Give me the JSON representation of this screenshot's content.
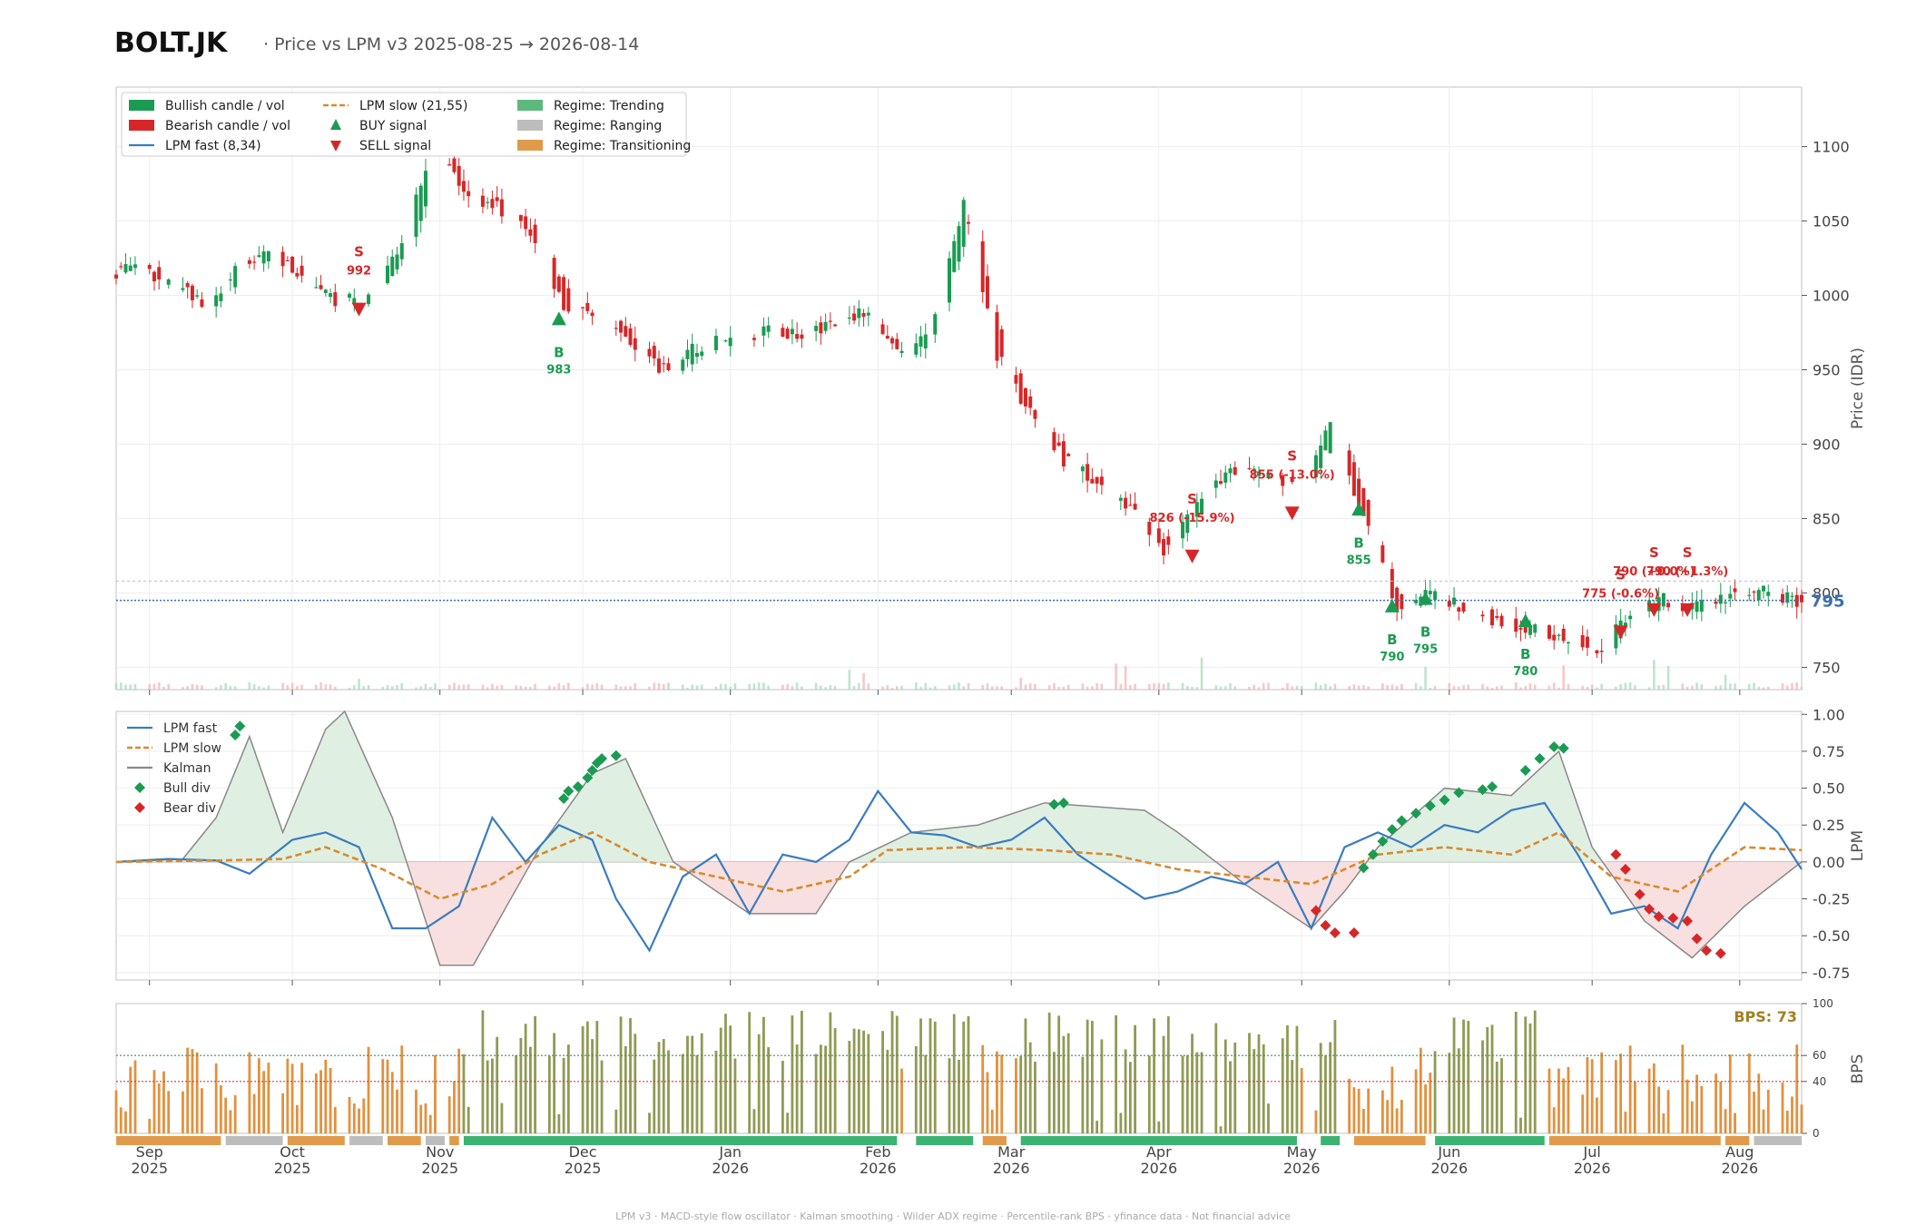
{
  "header": {
    "ticker": "BOLT.JK",
    "subtitle": "·  Price vs LPM v3  2025-08-25 → 2026-08-14"
  },
  "footer": "LPM v3  ·  MACD-style flow oscillator  ·  Kalman smoothing  ·  Wilder ADX regime  ·  Percentile-rank BPS  ·  yfinance data  ·  Not financial advice",
  "colors": {
    "bull": "#1b9b52",
    "bear": "#d62728",
    "fast": "#3a7cc0",
    "slow": "#d98a2e",
    "kalman": "#888888",
    "trend": "#3cb371",
    "range": "#bdbdbd",
    "trans": "#e09a4c",
    "last": "#3a6fb0"
  },
  "legend": [
    {
      "label": "Bullish candle / vol",
      "swatch": "box",
      "color": "#1b9b52"
    },
    {
      "label": "Bearish candle / vol",
      "swatch": "box",
      "color": "#d62728"
    },
    {
      "label": "LPM fast (8,34)",
      "swatch": "line",
      "color": "#3a7cc0"
    },
    {
      "label": "LPM slow (21,55)",
      "swatch": "dash",
      "color": "#d98a2e"
    },
    {
      "label": "BUY signal",
      "swatch": "up",
      "color": "#1b9b52"
    },
    {
      "label": "SELL signal",
      "swatch": "down",
      "color": "#d62728"
    },
    {
      "label": "Regime: Trending",
      "swatch": "box",
      "color": "#5cb87d"
    },
    {
      "label": "Regime: Ranging",
      "swatch": "box",
      "color": "#bdbdbd"
    },
    {
      "label": "Regime: Transitioning",
      "swatch": "box",
      "color": "#e09a4c"
    }
  ],
  "legend2": [
    {
      "label": "LPM fast",
      "swatch": "line",
      "color": "#3a7cc0"
    },
    {
      "label": "LPM slow",
      "swatch": "dash",
      "color": "#d98a2e"
    },
    {
      "label": "Kalman",
      "swatch": "line",
      "color": "#888888"
    },
    {
      "label": "Bull div",
      "swatch": "diamond",
      "color": "#1b9b52"
    },
    {
      "label": "Bear div",
      "swatch": "diamond",
      "color": "#d62728"
    }
  ],
  "chart_data": {
    "type": "candlestick",
    "x_range": [
      "2025-08-25",
      "2026-08-14"
    ],
    "x_ticks": [
      {
        "date": "2025-09-01",
        "l1": "Sep",
        "l2": "2025"
      },
      {
        "date": "2025-10-01",
        "l1": "Oct",
        "l2": "2025"
      },
      {
        "date": "2025-11-01",
        "l1": "Nov",
        "l2": "2025"
      },
      {
        "date": "2025-12-01",
        "l1": "Dec",
        "l2": "2025"
      },
      {
        "date": "2026-01-01",
        "l1": "Jan",
        "l2": "2026"
      },
      {
        "date": "2026-02-01",
        "l1": "Feb",
        "l2": "2026"
      },
      {
        "date": "2026-03-01",
        "l1": "Mar",
        "l2": "2026"
      },
      {
        "date": "2026-04-01",
        "l1": "Apr",
        "l2": "2026"
      },
      {
        "date": "2026-05-01",
        "l1": "May",
        "l2": "2026"
      },
      {
        "date": "2026-06-01",
        "l1": "Jun",
        "l2": "2026"
      },
      {
        "date": "2026-07-01",
        "l1": "Jul",
        "l2": "2026"
      },
      {
        "date": "2026-08-01",
        "l1": "Aug",
        "l2": "2026"
      }
    ],
    "price": {
      "ylabel": "Price (IDR)",
      "ylim": [
        735,
        1140
      ],
      "yticks": [
        750,
        800,
        850,
        900,
        950,
        1000,
        1050,
        1100
      ],
      "last_price": 795,
      "ref_level": 808,
      "closes": [
        [
          "2025-08-25",
          1015
        ],
        [
          "2025-09-01",
          1018
        ],
        [
          "2025-09-08",
          1005
        ],
        [
          "2025-09-15",
          995
        ],
        [
          "2025-09-22",
          1020
        ],
        [
          "2025-09-29",
          1030
        ],
        [
          "2025-10-06",
          1005
        ],
        [
          "2025-10-13",
          995
        ],
        [
          "2025-10-20",
          1000
        ],
        [
          "2025-10-27",
          1040
        ],
        [
          "2025-11-01",
          1100
        ],
        [
          "2025-11-08",
          1070
        ],
        [
          "2025-11-15",
          1060
        ],
        [
          "2025-11-22",
          1040
        ],
        [
          "2025-11-29",
          995
        ],
        [
          "2025-12-06",
          985
        ],
        [
          "2025-12-13",
          970
        ],
        [
          "2025-12-20",
          950
        ],
        [
          "2025-12-27",
          965
        ],
        [
          "2026-01-03",
          972
        ],
        [
          "2026-01-10",
          976
        ],
        [
          "2026-01-17",
          975
        ],
        [
          "2026-01-24",
          980
        ],
        [
          "2026-01-31",
          990
        ],
        [
          "2026-02-07",
          960
        ],
        [
          "2026-02-14",
          975
        ],
        [
          "2026-02-21",
          1060
        ],
        [
          "2026-02-28",
          960
        ],
        [
          "2026-03-07",
          920
        ],
        [
          "2026-03-14",
          890
        ],
        [
          "2026-03-21",
          875
        ],
        [
          "2026-03-28",
          855
        ],
        [
          "2026-04-04",
          830
        ],
        [
          "2026-04-11",
          860
        ],
        [
          "2026-04-18",
          885
        ],
        [
          "2026-04-25",
          880
        ],
        [
          "2026-05-02",
          870
        ],
        [
          "2026-05-09",
          910
        ],
        [
          "2026-05-16",
          850
        ],
        [
          "2026-05-23",
          790
        ],
        [
          "2026-05-30",
          800
        ],
        [
          "2026-06-06",
          790
        ],
        [
          "2026-06-13",
          780
        ],
        [
          "2026-06-20",
          775
        ],
        [
          "2026-06-27",
          770
        ],
        [
          "2026-07-04",
          760
        ],
        [
          "2026-07-11",
          785
        ],
        [
          "2026-07-18",
          795
        ],
        [
          "2026-07-25",
          790
        ],
        [
          "2026-08-01",
          800
        ],
        [
          "2026-08-08",
          800
        ],
        [
          "2026-08-14",
          795
        ]
      ]
    },
    "signals": [
      {
        "date": "2025-10-15",
        "type": "SELL",
        "price": 992,
        "text1": "S",
        "text2": "992"
      },
      {
        "date": "2025-11-26",
        "type": "BUY",
        "price": 983,
        "text1": "B",
        "text2": "983"
      },
      {
        "date": "2026-04-08",
        "type": "SELL",
        "price": 826,
        "text1": "S",
        "text2": "826 (-15.9%)"
      },
      {
        "date": "2026-04-29",
        "type": "SELL",
        "price": 855,
        "text1": "S",
        "text2": "855 (-13.0%)"
      },
      {
        "date": "2026-05-13",
        "type": "BUY",
        "price": 855,
        "text1": "B",
        "text2": "855"
      },
      {
        "date": "2026-05-20",
        "type": "BUY",
        "price": 790,
        "text1": "B",
        "text2": "790"
      },
      {
        "date": "2026-05-27",
        "type": "BUY",
        "price": 795,
        "text1": "B",
        "text2": "795"
      },
      {
        "date": "2026-06-17",
        "type": "BUY",
        "price": 780,
        "text1": "B",
        "text2": "780"
      },
      {
        "date": "2026-07-07",
        "type": "SELL",
        "price": 775,
        "text1": "S",
        "text2": "775 (-0.6%)"
      },
      {
        "date": "2026-07-14",
        "type": "SELL",
        "price": 790,
        "text1": "S",
        "text2": "790 (+0.0%)"
      },
      {
        "date": "2026-07-21",
        "type": "SELL",
        "price": 790,
        "text1": "S",
        "text2": "790 (+1.3%)"
      }
    ],
    "lpm": {
      "ylabel": "LPM",
      "ylim": [
        -0.8,
        1.02
      ],
      "yticks": [
        -0.75,
        -0.5,
        -0.25,
        0.0,
        0.25,
        0.5,
        0.75,
        1.0
      ],
      "fast": [
        [
          "2025-08-25",
          0.0
        ],
        [
          "2025-09-05",
          0.02
        ],
        [
          "2025-09-15",
          0.01
        ],
        [
          "2025-09-22",
          -0.08
        ],
        [
          "2025-10-01",
          0.15
        ],
        [
          "2025-10-08",
          0.2
        ],
        [
          "2025-10-15",
          0.1
        ],
        [
          "2025-10-22",
          -0.45
        ],
        [
          "2025-10-29",
          -0.45
        ],
        [
          "2025-11-05",
          -0.3
        ],
        [
          "2025-11-12",
          0.3
        ],
        [
          "2025-11-19",
          0.0
        ],
        [
          "2025-11-26",
          0.25
        ],
        [
          "2025-12-03",
          0.15
        ],
        [
          "2025-12-08",
          -0.25
        ],
        [
          "2025-12-15",
          -0.6
        ],
        [
          "2025-12-22",
          -0.1
        ],
        [
          "2025-12-29",
          0.05
        ],
        [
          "2026-01-05",
          -0.35
        ],
        [
          "2026-01-12",
          0.05
        ],
        [
          "2026-01-19",
          0.0
        ],
        [
          "2026-01-26",
          0.15
        ],
        [
          "2026-02-01",
          0.48
        ],
        [
          "2026-02-08",
          0.2
        ],
        [
          "2026-02-15",
          0.18
        ],
        [
          "2026-02-22",
          0.1
        ],
        [
          "2026-03-01",
          0.15
        ],
        [
          "2026-03-08",
          0.3
        ],
        [
          "2026-03-15",
          0.05
        ],
        [
          "2026-03-22",
          -0.1
        ],
        [
          "2026-03-29",
          -0.25
        ],
        [
          "2026-04-05",
          -0.2
        ],
        [
          "2026-04-12",
          -0.1
        ],
        [
          "2026-04-19",
          -0.15
        ],
        [
          "2026-04-26",
          0.0
        ],
        [
          "2026-05-03",
          -0.45
        ],
        [
          "2026-05-10",
          0.1
        ],
        [
          "2026-05-17",
          0.2
        ],
        [
          "2026-05-24",
          0.1
        ],
        [
          "2026-05-31",
          0.25
        ],
        [
          "2026-06-07",
          0.2
        ],
        [
          "2026-06-14",
          0.35
        ],
        [
          "2026-06-21",
          0.4
        ],
        [
          "2026-06-28",
          0.05
        ],
        [
          "2026-07-05",
          -0.35
        ],
        [
          "2026-07-12",
          -0.3
        ],
        [
          "2026-07-19",
          -0.45
        ],
        [
          "2026-07-26",
          0.05
        ],
        [
          "2026-08-02",
          0.4
        ],
        [
          "2026-08-09",
          0.2
        ],
        [
          "2026-08-14",
          -0.05
        ]
      ],
      "slow": [
        [
          "2025-08-25",
          0.0
        ],
        [
          "2025-09-15",
          0.01
        ],
        [
          "2025-09-29",
          0.02
        ],
        [
          "2025-10-08",
          0.1
        ],
        [
          "2025-10-20",
          -0.05
        ],
        [
          "2025-11-01",
          -0.25
        ],
        [
          "2025-11-12",
          -0.15
        ],
        [
          "2025-11-22",
          0.05
        ],
        [
          "2025-12-03",
          0.2
        ],
        [
          "2025-12-15",
          0.0
        ],
        [
          "2025-12-29",
          -0.1
        ],
        [
          "2026-01-12",
          -0.2
        ],
        [
          "2026-01-26",
          -0.1
        ],
        [
          "2026-02-03",
          0.08
        ],
        [
          "2026-02-20",
          0.1
        ],
        [
          "2026-03-08",
          0.08
        ],
        [
          "2026-03-22",
          0.05
        ],
        [
          "2026-04-05",
          -0.05
        ],
        [
          "2026-04-19",
          -0.1
        ],
        [
          "2026-05-03",
          -0.15
        ],
        [
          "2026-05-17",
          0.05
        ],
        [
          "2026-05-31",
          0.1
        ],
        [
          "2026-06-14",
          0.05
        ],
        [
          "2026-06-24",
          0.2
        ],
        [
          "2026-07-05",
          -0.1
        ],
        [
          "2026-07-19",
          -0.2
        ],
        [
          "2026-08-02",
          0.1
        ],
        [
          "2026-08-14",
          0.08
        ]
      ],
      "kalman": [
        [
          "2025-08-25",
          0.0
        ],
        [
          "2025-09-08",
          0.02
        ],
        [
          "2025-09-15",
          0.3
        ],
        [
          "2025-09-22",
          0.85
        ],
        [
          "2025-09-29",
          0.2
        ],
        [
          "2025-10-08",
          0.9
        ],
        [
          "2025-10-12",
          1.02
        ],
        [
          "2025-10-22",
          0.3
        ],
        [
          "2025-11-01",
          -0.7
        ],
        [
          "2025-11-08",
          -0.7
        ],
        [
          "2025-11-15",
          -0.3
        ],
        [
          "2025-11-22",
          0.1
        ],
        [
          "2025-12-03",
          0.6
        ],
        [
          "2025-12-10",
          0.7
        ],
        [
          "2025-12-20",
          0.0
        ],
        [
          "2026-01-05",
          -0.35
        ],
        [
          "2026-01-19",
          -0.35
        ],
        [
          "2026-01-26",
          0.0
        ],
        [
          "2026-02-08",
          0.2
        ],
        [
          "2026-02-22",
          0.25
        ],
        [
          "2026-03-08",
          0.4
        ],
        [
          "2026-03-29",
          0.35
        ],
        [
          "2026-04-05",
          0.2
        ],
        [
          "2026-04-19",
          -0.15
        ],
        [
          "2026-05-03",
          -0.45
        ],
        [
          "2026-05-10",
          -0.2
        ],
        [
          "2026-05-17",
          0.1
        ],
        [
          "2026-05-31",
          0.5
        ],
        [
          "2026-06-14",
          0.45
        ],
        [
          "2026-06-24",
          0.75
        ],
        [
          "2026-07-01",
          0.1
        ],
        [
          "2026-07-12",
          -0.4
        ],
        [
          "2026-07-22",
          -0.65
        ],
        [
          "2026-08-02",
          -0.3
        ],
        [
          "2026-08-14",
          0.0
        ]
      ],
      "bull_div": [
        [
          "2025-09-19",
          0.86
        ],
        [
          "2025-09-20",
          0.92
        ],
        [
          "2025-11-27",
          0.43
        ],
        [
          "2025-11-28",
          0.48
        ],
        [
          "2025-11-30",
          0.51
        ],
        [
          "2025-12-02",
          0.57
        ],
        [
          "2025-12-03",
          0.62
        ],
        [
          "2025-12-04",
          0.67
        ],
        [
          "2025-12-05",
          0.7
        ],
        [
          "2025-12-08",
          0.72
        ],
        [
          "2026-03-10",
          0.39
        ],
        [
          "2026-03-12",
          0.4
        ],
        [
          "2026-05-14",
          -0.04
        ],
        [
          "2026-05-16",
          0.05
        ],
        [
          "2026-05-18",
          0.14
        ],
        [
          "2026-05-20",
          0.22
        ],
        [
          "2026-05-22",
          0.28
        ],
        [
          "2026-05-25",
          0.33
        ],
        [
          "2026-05-28",
          0.38
        ],
        [
          "2026-05-31",
          0.42
        ],
        [
          "2026-06-03",
          0.47
        ],
        [
          "2026-06-08",
          0.49
        ],
        [
          "2026-06-10",
          0.51
        ],
        [
          "2026-06-17",
          0.62
        ],
        [
          "2026-06-20",
          0.7
        ],
        [
          "2026-06-23",
          0.78
        ],
        [
          "2026-06-25",
          0.77
        ]
      ],
      "bear_div": [
        [
          "2026-05-04",
          -0.33
        ],
        [
          "2026-05-06",
          -0.43
        ],
        [
          "2026-05-08",
          -0.48
        ],
        [
          "2026-05-12",
          -0.48
        ],
        [
          "2026-07-06",
          0.05
        ],
        [
          "2026-07-08",
          -0.05
        ],
        [
          "2026-07-11",
          -0.22
        ],
        [
          "2026-07-13",
          -0.32
        ],
        [
          "2026-07-15",
          -0.37
        ],
        [
          "2026-07-18",
          -0.38
        ],
        [
          "2026-07-21",
          -0.4
        ],
        [
          "2026-07-23",
          -0.52
        ],
        [
          "2026-07-25",
          -0.6
        ],
        [
          "2026-07-28",
          -0.62
        ]
      ]
    },
    "bps": {
      "ylabel": "BPS",
      "ylim": [
        0,
        100
      ],
      "yticks": [
        0,
        40,
        60,
        100
      ],
      "thresholds": [
        60,
        40
      ],
      "current_label": "BPS: 73"
    },
    "regime_bands": [
      [
        "2025-08-25",
        "2025-09-16",
        "trans"
      ],
      [
        "2025-09-17",
        "2025-09-29",
        "range"
      ],
      [
        "2025-09-30",
        "2025-10-12",
        "trans"
      ],
      [
        "2025-10-13",
        "2025-10-20",
        "range"
      ],
      [
        "2025-10-21",
        "2025-10-28",
        "trans"
      ],
      [
        "2025-10-29",
        "2025-11-02",
        "range"
      ],
      [
        "2025-11-03",
        "2025-11-05",
        "trans"
      ],
      [
        "2025-11-06",
        "2026-02-05",
        "trend"
      ],
      [
        "2026-02-09",
        "2026-02-21",
        "trend"
      ],
      [
        "2026-02-23",
        "2026-02-28",
        "trans"
      ],
      [
        "2026-03-03",
        "2026-04-30",
        "trend"
      ],
      [
        "2026-05-05",
        "2026-05-09",
        "trend"
      ],
      [
        "2026-05-12",
        "2026-05-27",
        "trans"
      ],
      [
        "2026-05-29",
        "2026-06-21",
        "trend"
      ],
      [
        "2026-06-22",
        "2026-07-28",
        "trans"
      ],
      [
        "2026-07-29",
        "2026-08-03",
        "trans"
      ],
      [
        "2026-08-04",
        "2026-08-14",
        "range"
      ]
    ]
  }
}
